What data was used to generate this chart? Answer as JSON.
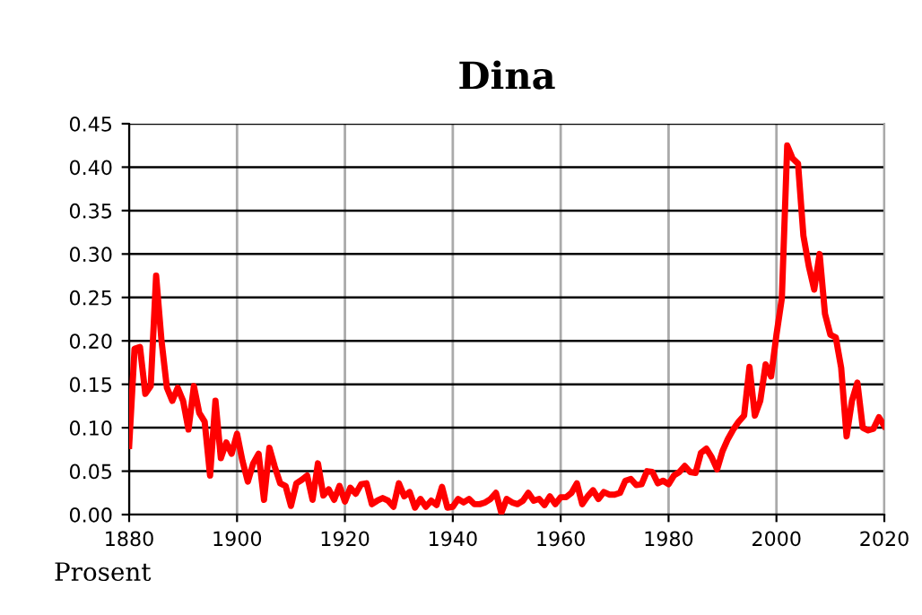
{
  "chart_data": {
    "type": "line",
    "title": "Dina",
    "annotations": [
      "Prosent"
    ],
    "x": [
      1880,
      1881,
      1882,
      1883,
      1884,
      1885,
      1886,
      1887,
      1888,
      1889,
      1890,
      1891,
      1892,
      1893,
      1894,
      1895,
      1896,
      1897,
      1898,
      1899,
      1900,
      1901,
      1902,
      1903,
      1904,
      1905,
      1906,
      1907,
      1908,
      1909,
      1910,
      1911,
      1912,
      1913,
      1914,
      1915,
      1916,
      1917,
      1918,
      1919,
      1920,
      1921,
      1922,
      1923,
      1924,
      1925,
      1926,
      1927,
      1928,
      1929,
      1930,
      1931,
      1932,
      1933,
      1934,
      1935,
      1936,
      1937,
      1938,
      1939,
      1940,
      1941,
      1942,
      1943,
      1944,
      1945,
      1946,
      1947,
      1948,
      1949,
      1950,
      1951,
      1952,
      1953,
      1954,
      1955,
      1956,
      1957,
      1958,
      1959,
      1960,
      1961,
      1962,
      1963,
      1964,
      1965,
      1966,
      1967,
      1968,
      1969,
      1970,
      1971,
      1972,
      1973,
      1974,
      1975,
      1976,
      1977,
      1978,
      1979,
      1980,
      1981,
      1982,
      1983,
      1984,
      1985,
      1986,
      1987,
      1988,
      1989,
      1990,
      1991,
      1992,
      1993,
      1994,
      1995,
      1996,
      1997,
      1998,
      1999,
      2000,
      2001,
      2002,
      2003,
      2004,
      2005,
      2006,
      2007,
      2008,
      2009,
      2010,
      2011,
      2012,
      2013,
      2014,
      2015,
      2016,
      2017,
      2018,
      2019,
      2020
    ],
    "series": [
      {
        "color": "#ff0000",
        "values": [
          0.079,
          0.191,
          0.193,
          0.139,
          0.148,
          0.275,
          0.2,
          0.146,
          0.131,
          0.146,
          0.131,
          0.098,
          0.148,
          0.117,
          0.107,
          0.045,
          0.131,
          0.065,
          0.083,
          0.07,
          0.093,
          0.062,
          0.038,
          0.059,
          0.07,
          0.017,
          0.077,
          0.055,
          0.036,
          0.033,
          0.01,
          0.036,
          0.04,
          0.045,
          0.017,
          0.059,
          0.022,
          0.029,
          0.017,
          0.033,
          0.015,
          0.031,
          0.024,
          0.035,
          0.036,
          0.012,
          0.016,
          0.019,
          0.016,
          0.009,
          0.036,
          0.021,
          0.026,
          0.008,
          0.018,
          0.009,
          0.016,
          0.011,
          0.032,
          0.008,
          0.009,
          0.018,
          0.014,
          0.018,
          0.012,
          0.012,
          0.014,
          0.018,
          0.025,
          0.002,
          0.018,
          0.014,
          0.012,
          0.016,
          0.025,
          0.016,
          0.018,
          0.011,
          0.021,
          0.012,
          0.02,
          0.02,
          0.025,
          0.036,
          0.012,
          0.021,
          0.028,
          0.018,
          0.026,
          0.023,
          0.023,
          0.025,
          0.039,
          0.041,
          0.034,
          0.035,
          0.05,
          0.049,
          0.036,
          0.039,
          0.035,
          0.045,
          0.049,
          0.056,
          0.049,
          0.048,
          0.071,
          0.076,
          0.066,
          0.052,
          0.073,
          0.087,
          0.098,
          0.107,
          0.114,
          0.17,
          0.114,
          0.131,
          0.173,
          0.159,
          0.207,
          0.249,
          0.425,
          0.41,
          0.404,
          0.321,
          0.286,
          0.259,
          0.3,
          0.231,
          0.207,
          0.204,
          0.169,
          0.09,
          0.131,
          0.152,
          0.1,
          0.097,
          0.099,
          0.112,
          0.102
        ]
      }
    ],
    "xlim": [
      1880,
      2020
    ],
    "xticks": [
      1880,
      1900,
      1920,
      1940,
      1960,
      1980,
      2000,
      2020
    ],
    "ylim": [
      0,
      0.45
    ],
    "yticks": [
      {
        "value": 0,
        "label": "0.00"
      },
      {
        "value": 0.05,
        "label": "0.05"
      },
      {
        "value": 0.1,
        "label": "0.10"
      },
      {
        "value": 0.15,
        "label": "0.15"
      },
      {
        "value": 0.2,
        "label": "0.20"
      },
      {
        "value": 0.25,
        "label": "0.25"
      },
      {
        "value": 0.3,
        "label": "0.30"
      },
      {
        "value": 0.35,
        "label": "0.35"
      },
      {
        "value": 0.4,
        "label": "0.40"
      },
      {
        "value": 0.45,
        "label": "0.45"
      }
    ],
    "grid": true,
    "line_style": "solid"
  }
}
